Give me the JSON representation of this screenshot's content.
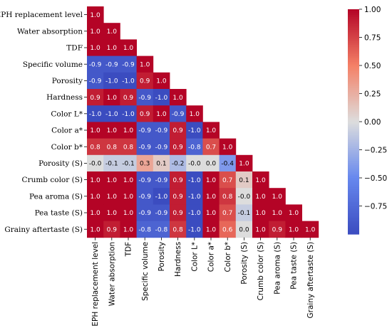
{
  "chart_data": {
    "type": "heatmap",
    "variant": "lower-triangle correlation matrix",
    "labels": [
      "EPH replacement level",
      "Water absorption",
      "TDF",
      "Specific volume",
      "Porosity",
      "Hardness",
      "Color L*",
      "Color a*",
      "Color b*",
      "Porosity (S)",
      "Crumb color (S)",
      "Pea aroma (S)",
      "Pea taste (S)",
      "Grainy aftertaste (S)"
    ],
    "matrix": [
      [
        1.0
      ],
      [
        1.0,
        1.0
      ],
      [
        1.0,
        1.0,
        1.0
      ],
      [
        -0.9,
        -0.9,
        -0.9,
        1.0
      ],
      [
        -0.9,
        -1.0,
        -1.0,
        0.9,
        1.0
      ],
      [
        0.9,
        1.0,
        0.9,
        -0.9,
        -1.0,
        1.0
      ],
      [
        -1.0,
        -1.0,
        -1.0,
        0.9,
        1.0,
        -0.9,
        1.0
      ],
      [
        1.0,
        1.0,
        1.0,
        -0.9,
        -0.9,
        0.9,
        -1.0,
        1.0
      ],
      [
        0.8,
        0.8,
        0.8,
        -0.9,
        -0.9,
        0.9,
        -0.8,
        0.7,
        1.0
      ],
      [
        -0.0,
        -0.1,
        -0.1,
        0.3,
        0.1,
        -0.2,
        -0.0,
        0.0,
        -0.4,
        1.0
      ],
      [
        1.0,
        1.0,
        1.0,
        -0.9,
        -0.9,
        0.9,
        -1.0,
        1.0,
        0.7,
        0.1,
        1.0
      ],
      [
        1.0,
        1.0,
        1.0,
        -0.9,
        -1.0,
        0.9,
        -1.0,
        1.0,
        0.8,
        -0.0,
        1.0,
        1.0
      ],
      [
        1.0,
        1.0,
        1.0,
        -0.9,
        -0.9,
        0.9,
        -1.0,
        1.0,
        0.7,
        -0.1,
        1.0,
        1.0,
        1.0
      ],
      [
        1.0,
        0.9,
        1.0,
        -0.8,
        -0.8,
        0.8,
        -1.0,
        1.0,
        0.6,
        0.0,
        1.0,
        0.9,
        1.0,
        1.0
      ]
    ],
    "colormap": "coolwarm",
    "color_low": "#3b4cc0",
    "color_mid": "#dddddd",
    "color_high": "#b40426",
    "vmin": -1.0,
    "vmax": 1.0,
    "colorbar_ticks": [
      1.0,
      0.75,
      0.5,
      0.25,
      0.0,
      -0.25,
      -0.5,
      -0.75
    ],
    "colorbar_tick_labels": [
      "1.00",
      "0.75",
      "0.50",
      "0.25",
      "0.00",
      "−0.25",
      "−0.50",
      "−0.75"
    ]
  }
}
